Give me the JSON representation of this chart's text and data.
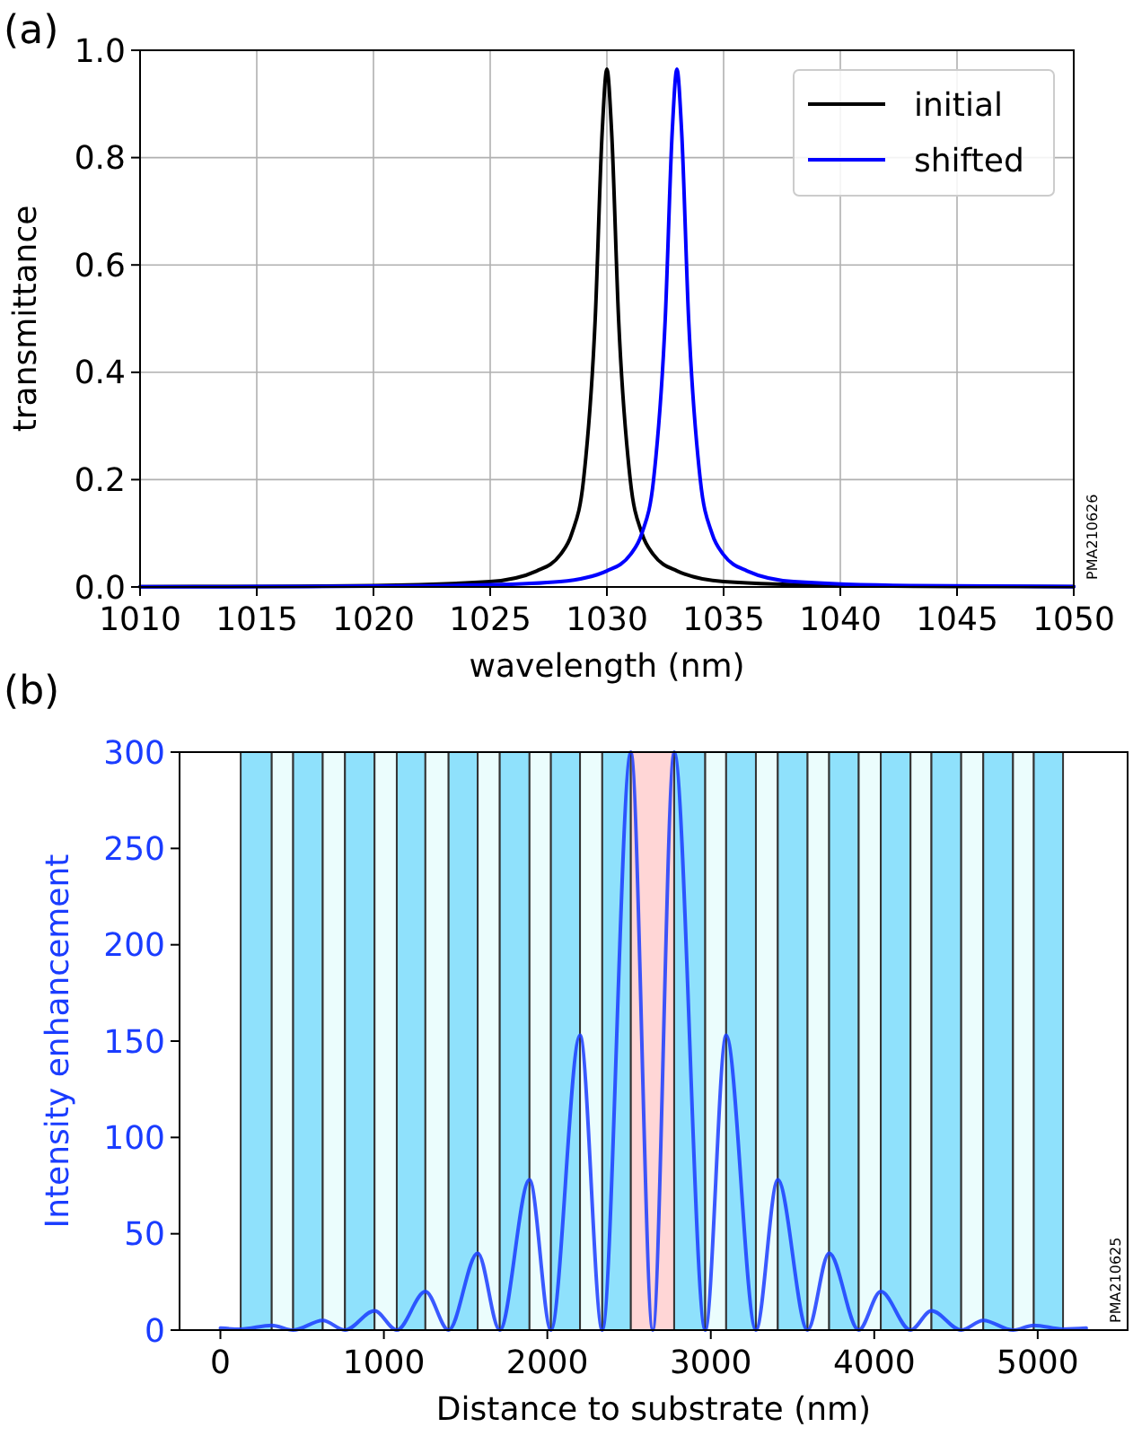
{
  "chart_data": [
    {
      "type": "line",
      "title": "(a)",
      "xlabel": "wavelength (nm)",
      "ylabel": "transmittance",
      "xlim": [
        1010,
        1050
      ],
      "ylim": [
        0,
        1
      ],
      "xticks": [
        1010,
        1015,
        1020,
        1025,
        1030,
        1035,
        1040,
        1045,
        1050
      ],
      "yticks": [
        {
          "value": 0,
          "label": "0.0"
        },
        {
          "value": 0.2,
          "label": "0.2"
        },
        {
          "value": 0.4,
          "label": "0.4"
        },
        {
          "value": 0.6,
          "label": "0.6"
        },
        {
          "value": 0.8,
          "label": "0.8"
        },
        {
          "value": 1,
          "label": "1.0"
        }
      ],
      "grid": true,
      "legend": "top right",
      "annotations": [
        "PMA210626"
      ],
      "series": [
        {
          "name": "initial",
          "color": "#000000",
          "x": [
            1010,
            1015,
            1020,
            1025,
            1027,
            1028,
            1028.5,
            1029,
            1029.5,
            1029.8,
            1030,
            1030.2,
            1030.5,
            1031,
            1031.5,
            1032,
            1033,
            1035,
            1040,
            1045,
            1050
          ],
          "values": [
            0.0005,
            0.001,
            0.0025,
            0.01,
            0.03,
            0.06,
            0.1,
            0.2,
            0.5,
            0.85,
            0.965,
            0.85,
            0.5,
            0.2,
            0.1,
            0.06,
            0.03,
            0.01,
            0.0025,
            0.001,
            0.0005
          ]
        },
        {
          "name": "shifted",
          "color": "#0000ff",
          "x": [
            1010,
            1015,
            1020,
            1025,
            1028,
            1030,
            1031,
            1031.5,
            1032,
            1032.5,
            1032.8,
            1033,
            1033.2,
            1033.5,
            1034,
            1034.5,
            1035,
            1036,
            1038,
            1043,
            1050
          ],
          "values": [
            0.0004,
            0.0007,
            0.0015,
            0.004,
            0.01,
            0.03,
            0.06,
            0.1,
            0.2,
            0.5,
            0.85,
            0.965,
            0.85,
            0.5,
            0.2,
            0.1,
            0.06,
            0.03,
            0.01,
            0.0025,
            0.0007
          ]
        }
      ]
    },
    {
      "type": "line",
      "title": "(b)",
      "xlabel": "Distance to substrate (nm)",
      "ylabel": "Intensity enhancement",
      "xlim": [
        -250,
        5550
      ],
      "ylim": [
        0,
        300
      ],
      "xticks": [
        0,
        1000,
        2000,
        3000,
        4000,
        5000
      ],
      "yticks": [
        0,
        50,
        100,
        150,
        200,
        250,
        300
      ],
      "grid": false,
      "annotations": [
        "PMA210625"
      ],
      "bands": [
        {
          "axis": "x",
          "from": 124,
          "to": 314,
          "color": "#8fe1fc"
        },
        {
          "axis": "x",
          "from": 314,
          "to": 445,
          "color": "#ebfdfd"
        },
        {
          "axis": "x",
          "from": 445,
          "to": 626,
          "color": "#8fe1fc"
        },
        {
          "axis": "x",
          "from": 626,
          "to": 762,
          "color": "#ebfdfd"
        },
        {
          "axis": "x",
          "from": 762,
          "to": 943,
          "color": "#8fe1fc"
        },
        {
          "axis": "x",
          "from": 943,
          "to": 1079,
          "color": "#ebfdfd"
        },
        {
          "axis": "x",
          "from": 1079,
          "to": 1254,
          "color": "#8fe1fc"
        },
        {
          "axis": "x",
          "from": 1254,
          "to": 1396,
          "color": "#ebfdfd"
        },
        {
          "axis": "x",
          "from": 1396,
          "to": 1574,
          "color": "#8fe1fc"
        },
        {
          "axis": "x",
          "from": 1574,
          "to": 1709,
          "color": "#ebfdfd"
        },
        {
          "axis": "x",
          "from": 1709,
          "to": 1891,
          "color": "#8fe1fc"
        },
        {
          "axis": "x",
          "from": 1891,
          "to": 2022,
          "color": "#ebfdfd"
        },
        {
          "axis": "x",
          "from": 2022,
          "to": 2200,
          "color": "#8fe1fc"
        },
        {
          "axis": "x",
          "from": 2200,
          "to": 2336,
          "color": "#ebfdfd"
        },
        {
          "axis": "x",
          "from": 2336,
          "to": 2511,
          "color": "#8fe1fc"
        },
        {
          "axis": "x",
          "from": 2511,
          "to": 2776,
          "color": "#ffd6d6"
        },
        {
          "axis": "x",
          "from": 2776,
          "to": 2966,
          "color": "#8fe1fc"
        },
        {
          "axis": "x",
          "from": 2966,
          "to": 3094,
          "color": "#ebfdfd"
        },
        {
          "axis": "x",
          "from": 3094,
          "to": 3276,
          "color": "#8fe1fc"
        },
        {
          "axis": "x",
          "from": 3276,
          "to": 3410,
          "color": "#ebfdfd"
        },
        {
          "axis": "x",
          "from": 3410,
          "to": 3592,
          "color": "#8fe1fc"
        },
        {
          "axis": "x",
          "from": 3592,
          "to": 3724,
          "color": "#ebfdfd"
        },
        {
          "axis": "x",
          "from": 3724,
          "to": 3905,
          "color": "#8fe1fc"
        },
        {
          "axis": "x",
          "from": 3905,
          "to": 4040,
          "color": "#ebfdfd"
        },
        {
          "axis": "x",
          "from": 4040,
          "to": 4222,
          "color": "#8fe1fc"
        },
        {
          "axis": "x",
          "from": 4222,
          "to": 4350,
          "color": "#ebfdfd"
        },
        {
          "axis": "x",
          "from": 4350,
          "to": 4532,
          "color": "#8fe1fc"
        },
        {
          "axis": "x",
          "from": 4532,
          "to": 4667,
          "color": "#ebfdfd"
        },
        {
          "axis": "x",
          "from": 4667,
          "to": 4849,
          "color": "#8fe1fc"
        },
        {
          "axis": "x",
          "from": 4849,
          "to": 4976,
          "color": "#ebfdfd"
        },
        {
          "axis": "x",
          "from": 4976,
          "to": 5155,
          "color": "#8fe1fc"
        }
      ],
      "series": [
        {
          "color": "#1a3cff",
          "x": [
            0,
            124,
            314,
            445,
            626,
            762,
            943,
            1079,
            1254,
            1396,
            1574,
            1709,
            1891,
            2022,
            2200,
            2336,
            2511,
            2645,
            2776,
            2966,
            3094,
            3276,
            3410,
            3592,
            3724,
            3905,
            4040,
            4222,
            4350,
            4532,
            4667,
            4849,
            4976,
            5155,
            5297
          ],
          "values": [
            1,
            0.5,
            2.5,
            0,
            5,
            0,
            10,
            0,
            20,
            0,
            40,
            0,
            78,
            0,
            153,
            0,
            300,
            0,
            300,
            0,
            153,
            0,
            78,
            0,
            40,
            0,
            20,
            0,
            10,
            0,
            5,
            0,
            2.5,
            0.5,
            1
          ]
        }
      ]
    }
  ]
}
